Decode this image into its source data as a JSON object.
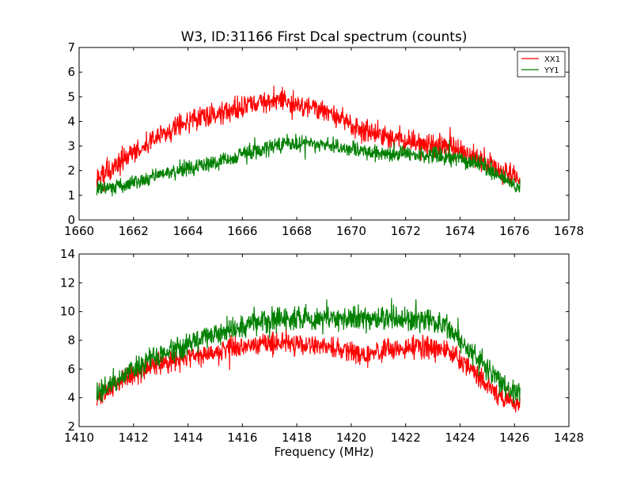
{
  "chart_data": [
    {
      "type": "line",
      "title": "W3, ID:31166 First Dcal spectrum (counts)",
      "xlabel": "",
      "ylabel": "",
      "xlim": [
        1660,
        1678
      ],
      "ylim": [
        0,
        7
      ],
      "xticks": [
        "1660",
        "1662",
        "1664",
        "1666",
        "1668",
        "1670",
        "1672",
        "1674",
        "1676",
        "1678"
      ],
      "yticks": [
        "0",
        "1",
        "2",
        "3",
        "4",
        "5",
        "6",
        "7"
      ],
      "grid": false,
      "legend_position": "top-right",
      "series": [
        {
          "name": "XX1",
          "color": "#ff0000",
          "x": [
            1660.65,
            1661.5,
            1662.5,
            1663.5,
            1664.5,
            1665.5,
            1666.5,
            1667.5,
            1668.5,
            1669.5,
            1670.5,
            1671.5,
            1672.5,
            1673.5,
            1674.5,
            1675.5,
            1676.2
          ],
          "values": [
            1.7,
            2.3,
            3.1,
            3.8,
            4.1,
            4.4,
            4.7,
            4.9,
            4.6,
            4.1,
            3.6,
            3.3,
            3.1,
            3.0,
            2.6,
            2.0,
            1.6
          ],
          "noise": 0.28
        },
        {
          "name": "YY1",
          "color": "#008000",
          "x": [
            1660.65,
            1661.5,
            1662.5,
            1663.5,
            1664.5,
            1665.5,
            1666.5,
            1667.5,
            1668.5,
            1669.5,
            1670.5,
            1671.5,
            1672.5,
            1673.5,
            1674.5,
            1675.5,
            1676.2
          ],
          "values": [
            1.3,
            1.4,
            1.7,
            1.95,
            2.2,
            2.5,
            2.8,
            3.1,
            3.1,
            2.95,
            2.8,
            2.7,
            2.65,
            2.6,
            2.35,
            1.8,
            1.3
          ],
          "noise": 0.2
        }
      ]
    },
    {
      "type": "line",
      "title": "",
      "xlabel": "Frequency (MHz)",
      "ylabel": "",
      "xlim": [
        1410,
        1428
      ],
      "ylim": [
        2,
        14
      ],
      "xticks": [
        "1410",
        "1412",
        "1414",
        "1416",
        "1418",
        "1420",
        "1422",
        "1424",
        "1426",
        "1428"
      ],
      "yticks": [
        "2",
        "4",
        "6",
        "8",
        "10",
        "12",
        "14"
      ],
      "grid": false,
      "series": [
        {
          "name": "",
          "color": "#ff0000",
          "x": [
            1410.65,
            1411.5,
            1412.5,
            1413.5,
            1414.5,
            1415.5,
            1416.5,
            1417.5,
            1418.5,
            1419.5,
            1420.5,
            1421.5,
            1422.5,
            1423.5,
            1424.5,
            1425.5,
            1426.2
          ],
          "values": [
            4.0,
            5.2,
            6.1,
            6.6,
            7.0,
            7.4,
            7.7,
            7.8,
            7.7,
            7.5,
            6.9,
            7.4,
            7.6,
            7.2,
            5.9,
            4.0,
            3.5
          ],
          "noise": 0.45
        },
        {
          "name": "",
          "color": "#008000",
          "x": [
            1410.65,
            1411.5,
            1412.5,
            1413.5,
            1414.5,
            1415.5,
            1416.5,
            1417.5,
            1418.5,
            1419.5,
            1420.5,
            1421.5,
            1422.5,
            1423.5,
            1424.5,
            1425.5,
            1426.2
          ],
          "values": [
            4.3,
            5.4,
            6.6,
            7.4,
            8.2,
            8.8,
            9.3,
            9.5,
            9.5,
            9.4,
            9.6,
            9.5,
            9.4,
            9.0,
            7.0,
            5.0,
            4.3
          ],
          "noise": 0.5
        }
      ]
    }
  ]
}
